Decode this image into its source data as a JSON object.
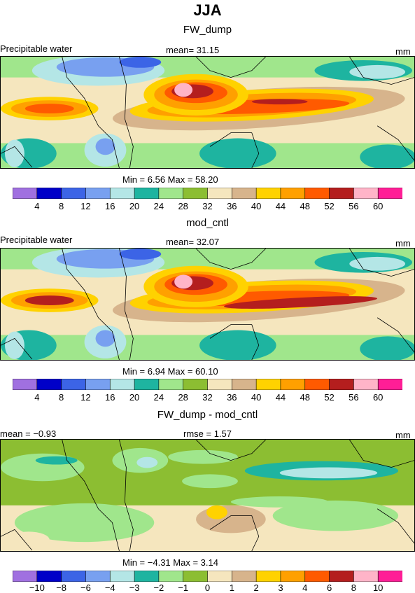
{
  "title": "JJA",
  "panels": [
    {
      "name": "FW_dump",
      "left_label": "Precipitable water",
      "center_label": "mean=  31.15",
      "right_label": "mm",
      "stats": "Min =    6.56  Max =   58.20",
      "field": "fw"
    },
    {
      "name": "mod_cntl",
      "left_label": "Precipitable water",
      "center_label": "mean=  32.07",
      "right_label": "mm",
      "stats": "Min =    6.94  Max =   60.10",
      "field": "cntl"
    },
    {
      "name": "FW_dump - mod_cntl",
      "left_label": "mean =  −0.93",
      "center_label": "rmse =    1.57",
      "right_label": "mm",
      "stats": "Min =  −4.31  Max =    3.14",
      "field": "diff"
    }
  ],
  "colorbar_abs": {
    "colors": [
      "#a070e0",
      "#0000c8",
      "#3c64e6",
      "#78a0f0",
      "#b4e6e6",
      "#1eb4a0",
      "#a0e68c",
      "#8cbe32",
      "#f5e6be",
      "#d7b48c",
      "#ffd200",
      "#ffa000",
      "#ff5a00",
      "#b41e1e",
      "#ffb4c8",
      "#ff1e96"
    ],
    "labels": [
      "4",
      "8",
      "12",
      "16",
      "20",
      "24",
      "28",
      "32",
      "36",
      "40",
      "44",
      "48",
      "52",
      "56",
      "60"
    ]
  },
  "colorbar_diff": {
    "colors": [
      "#a070e0",
      "#0000c8",
      "#3c64e6",
      "#78a0f0",
      "#b4e6e6",
      "#1eb4a0",
      "#a0e68c",
      "#8cbe32",
      "#f5e6be",
      "#d7b48c",
      "#ffd200",
      "#ffa000",
      "#ff5a00",
      "#b41e1e",
      "#ffb4c8",
      "#ff1e96"
    ],
    "labels": [
      "−10",
      "−8",
      "−6",
      "−4",
      "−3",
      "−2",
      "−1",
      "0",
      "1",
      "2",
      "3",
      "4",
      "6",
      "8",
      "10"
    ]
  }
}
